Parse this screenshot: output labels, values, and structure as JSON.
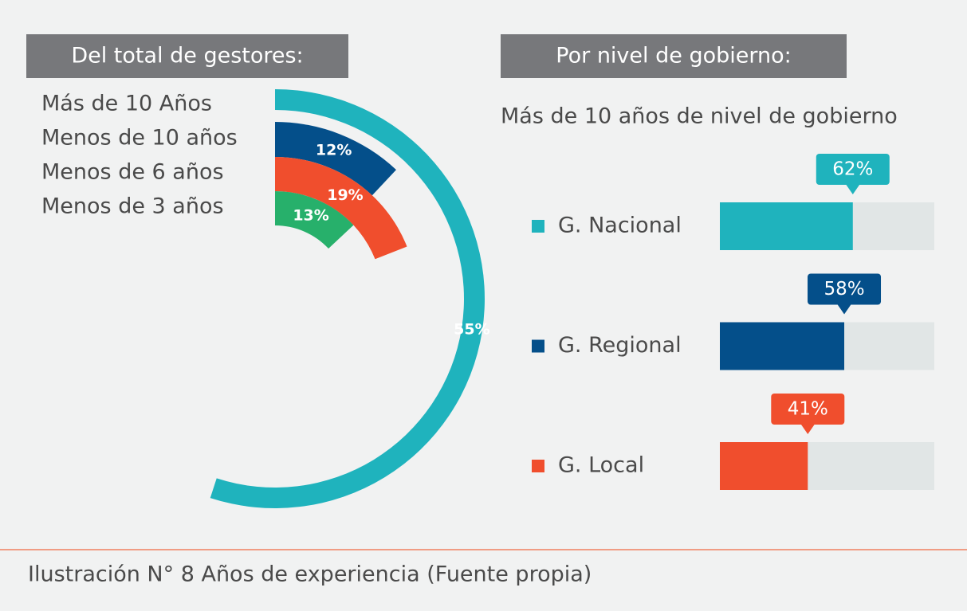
{
  "chart_data": [
    {
      "type": "radial_bar",
      "title": "Del total de gestores:",
      "categories": [
        "Más de 10 Años",
        "Menos de 10 años",
        "Menos de 6 años",
        "Menos de 3 años"
      ],
      "values": [
        55,
        12,
        19,
        13
      ],
      "value_labels": [
        "55%",
        "12%",
        "19%",
        "13%"
      ],
      "colors": [
        "#1fb3bd",
        "#044f8a",
        "#f04e2d",
        "#27b06b"
      ],
      "ylim": [
        0,
        100
      ]
    },
    {
      "type": "progress_bar",
      "title": "Por nivel de gobierno:",
      "subtitle": "Más de 10 años de nivel de gobierno",
      "categories": [
        "G. Nacional",
        "G. Regional",
        "G. Local"
      ],
      "values": [
        62,
        58,
        41
      ],
      "value_labels": [
        "62%",
        "58%",
        "41%"
      ],
      "colors": [
        "#1fb3bd",
        "#044f8a",
        "#f04e2d"
      ],
      "track_color": "#e1e6e6",
      "xlim": [
        0,
        100
      ]
    }
  ],
  "caption": "Ilustración N° 8 Años de experiencia (Fuente propia)"
}
